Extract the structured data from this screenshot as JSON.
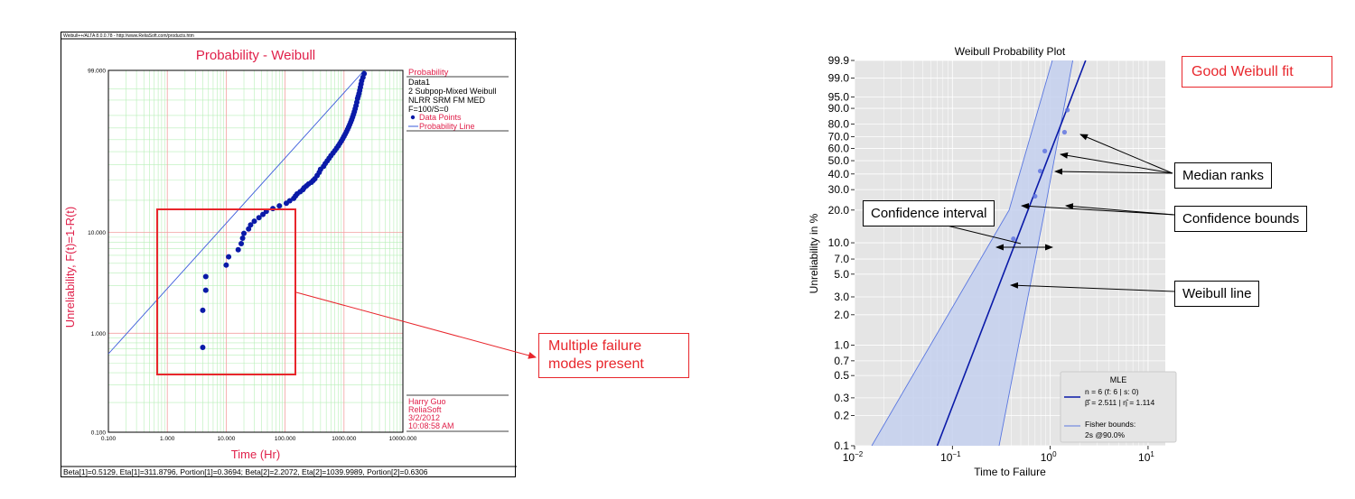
{
  "left_panel": {
    "titlebar": "Weibull++/ALTA 8.0.0.78 - http://www.ReliaSoft.com/products.htm",
    "title": "Probability - Weibull",
    "ylabel": "Unreliability, F(t)=1-R(t)",
    "xlabel": "Time (Hr)",
    "x_ticks": [
      "0.100",
      "1.000",
      "10.000",
      "100.000",
      "1000.000",
      "10000.000"
    ],
    "y_ticks": [
      "0.100",
      "1.000",
      "10.000",
      "99.000"
    ],
    "legend_header": "Probability",
    "legend_lines": [
      "Data1",
      "2 Subpop-Mixed Weibull",
      "NLRR SRM FM MED",
      "F=100/S=0"
    ],
    "legend_points": "Data Points",
    "legend_line": "Probability Line",
    "author_lines": [
      "Harry Guo",
      "ReliaSoft",
      "3/2/2012",
      "10:08:58 AM"
    ],
    "footer": "Beta[1]=0.5129, Eta[1]=311.8796, Portion[1]=0.3694; Beta[2]=2.2072, Eta[2]=1039.9989, Portion[2]=0.6306",
    "colors": {
      "text": "#e0204a",
      "points": "#0a1aa8",
      "line": "#3b5bdb",
      "grid_major": "#f3a0a0",
      "grid_minor": "#b8efb8"
    }
  },
  "left_callout": {
    "text_lines": [
      "Multiple failure",
      "modes present"
    ]
  },
  "right_panel": {
    "title": "Weibull Probability Plot",
    "ylabel": "Unreliability in %",
    "xlabel": "Time to Failure",
    "y_ticks": [
      "0.1",
      "0.2",
      "0.3",
      "0.5",
      "0.7",
      "1.0",
      "2.0",
      "3.0",
      "5.0",
      "7.0",
      "10.0",
      "20.0",
      "30.0",
      "40.0",
      "50.0",
      "60.0",
      "70.0",
      "80.0",
      "90.0",
      "95.0",
      "99.0",
      "99.9"
    ],
    "x_ticks": [
      {
        "base": "10",
        "exp": "−2"
      },
      {
        "base": "10",
        "exp": "−1"
      },
      {
        "base": "10",
        "exp": "0"
      },
      {
        "base": "10",
        "exp": "1"
      }
    ],
    "legend": {
      "title": "MLE",
      "fit_line1": "n = 6 (f: 6 | s: 0)",
      "fit_line2": "β̂ = 2.511 | η̂ = 1.114",
      "bounds_line1": "Fisher bounds:",
      "bounds_line2": "2s @90.0%"
    },
    "colors": {
      "panel": "#e5e5e5",
      "line": "#0a1aa8",
      "bounds": "#5a77e0",
      "fill": "#c4d0ee"
    }
  },
  "right_callouts": {
    "good_fit": "Good Weibull fit",
    "median_ranks": "Median ranks",
    "confidence_bounds": "Confidence bounds",
    "confidence_interval": "Confidence interval",
    "weibull_line": "Weibull line"
  },
  "chart_data": [
    {
      "type": "scatter",
      "title": "Probability - Weibull",
      "xlabel": "Time (Hr)",
      "ylabel": "Unreliability, F(t)=1-R(t)",
      "x_scale": "log",
      "y_scale": "weibull",
      "xlim": [
        0.1,
        10000
      ],
      "ylim_percent": [
        0.1,
        99
      ],
      "grid": true,
      "legend_placement": "right",
      "series": [
        {
          "name": "Data Points",
          "x": [
            4,
            4,
            4.5,
            4.5,
            10,
            11,
            16,
            18,
            19,
            20,
            24,
            26,
            30,
            36,
            42,
            48,
            62,
            80,
            105,
            120,
            140,
            150,
            160,
            180,
            200,
            210,
            230,
            250,
            280,
            300,
            320,
            350,
            380,
            400,
            450,
            480,
            520,
            560,
            600,
            650,
            700,
            750,
            800,
            850,
            900,
            950,
            1000,
            1050,
            1100,
            1150,
            1200,
            1250,
            1300,
            1350,
            1400,
            1450,
            1500,
            1550,
            1600,
            1650,
            1700,
            1750,
            1800,
            1850,
            1900,
            1950,
            2000,
            2100,
            2200
          ],
          "y": [
            0.72,
            1.7,
            2.7,
            3.7,
            4.8,
            5.8,
            6.8,
            7.8,
            8.8,
            9.8,
            10.8,
            11.8,
            12.8,
            13.8,
            14.8,
            15.8,
            16.8,
            17.8,
            18.8,
            19.8,
            20.8,
            21.8,
            22.8,
            23.8,
            24.8,
            25.8,
            26.8,
            27.8,
            28.8,
            29.8,
            30.8,
            32.8,
            34.8,
            36.8,
            38.8,
            40.8,
            42.8,
            44.8,
            46.8,
            48.8,
            50.8,
            52.8,
            54.8,
            56.8,
            58.8,
            60.8,
            62.8,
            64.8,
            66.8,
            68.8,
            70.8,
            72.8,
            74.8,
            76.8,
            78.8,
            80.8,
            82.8,
            84.8,
            86.8,
            88.8,
            90.8,
            92.0,
            93.2,
            94.4,
            95.5,
            96.5,
            97.3,
            98.0,
            98.6
          ]
        },
        {
          "name": "Probability Line",
          "x": [
            0.1,
            2200
          ],
          "y": [
            0.62,
            99.0
          ]
        }
      ]
    },
    {
      "type": "scatter",
      "title": "Weibull Probability Plot",
      "xlabel": "Time to Failure",
      "ylabel": "Unreliability in %",
      "x_scale": "log",
      "y_scale": "weibull",
      "xlim": [
        0.01,
        15
      ],
      "ylim_percent": [
        0.1,
        99.9
      ],
      "grid": true,
      "legend_placement": "bottom-right",
      "beta": 2.511,
      "eta": 1.114,
      "series": [
        {
          "name": "Median ranks",
          "x": [
            0.42,
            0.7,
            0.79,
            0.88,
            1.4,
            1.5
          ],
          "y": [
            10.9,
            26.4,
            42.1,
            57.9,
            73.6,
            89.1
          ]
        },
        {
          "name": "n = 6 (f: 6 | s: 0)",
          "x": [
            0.07,
            2.3
          ],
          "y": [
            0.1,
            99.9
          ]
        },
        {
          "name": "Fisher bounds: 2s @90.0%",
          "x_lower": [
            0.3,
            0.88,
            1.7
          ],
          "x_upper": [
            0.015,
            0.38,
            1.05
          ],
          "y": [
            0.1,
            20.0,
            99.9
          ]
        }
      ]
    }
  ]
}
